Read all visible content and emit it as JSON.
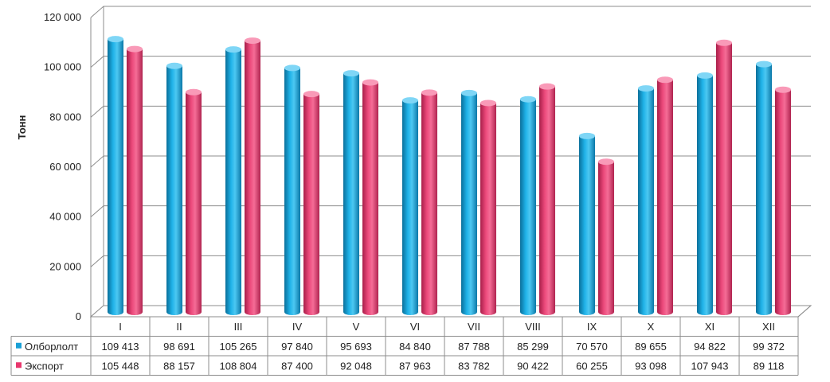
{
  "chart_data": {
    "type": "bar",
    "ylabel": "Тонн",
    "ylim": [
      0,
      120000
    ],
    "yticks": [
      "0",
      "20 000",
      "40 000",
      "60 000",
      "80 000",
      "100 000",
      "120 000"
    ],
    "categories": [
      "I",
      "II",
      "III",
      "IV",
      "V",
      "VI",
      "VII",
      "VIII",
      "IX",
      "X",
      "XI",
      "XII"
    ],
    "series": [
      {
        "name": "Олборлолт",
        "color": "#1aa0d6",
        "values": [
          109413,
          98691,
          105265,
          97840,
          95693,
          84840,
          87788,
          85299,
          70570,
          89655,
          94822,
          99372
        ],
        "labels": [
          "109 413",
          "98 691",
          "105 265",
          "97 840",
          "95 693",
          "84 840",
          "87 788",
          "85 299",
          "70 570",
          "89 655",
          "94 822",
          "99 372"
        ]
      },
      {
        "name": "Экспорт",
        "color": "#e8386e",
        "values": [
          105448,
          88157,
          108804,
          87400,
          92048,
          87963,
          83782,
          90422,
          60255,
          93098,
          107943,
          89118
        ],
        "labels": [
          "105 448",
          "88 157",
          "108 804",
          "87 400",
          "92 048",
          "87 963",
          "83 782",
          "90 422",
          "60 255",
          "93 098",
          "107 943",
          "89 118"
        ]
      }
    ],
    "grid": true,
    "legend": "data-table"
  }
}
